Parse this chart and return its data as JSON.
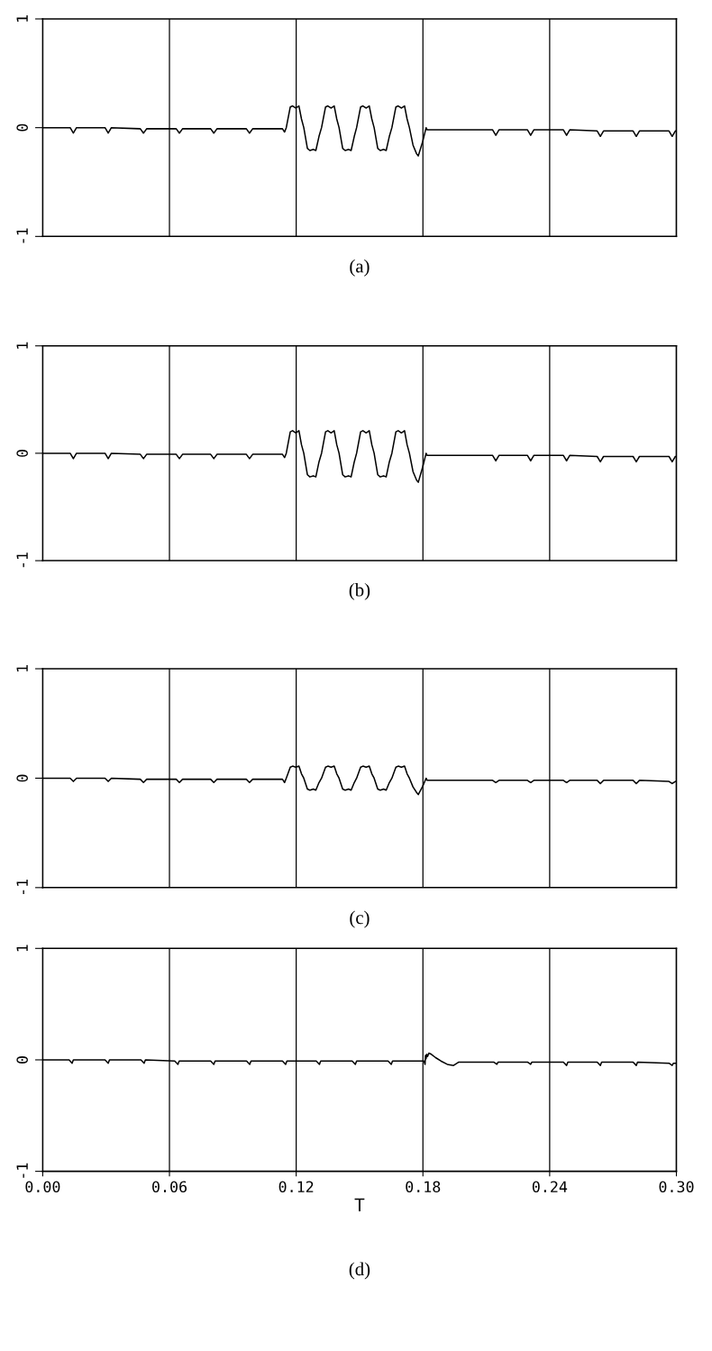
{
  "chart_data": [
    {
      "type": "line",
      "title": "(a)",
      "xlim": [
        0,
        0.3
      ],
      "ylim": [
        -1,
        1
      ],
      "yticks": [
        -1,
        0,
        1
      ],
      "grid": "x",
      "tick_labels": "y",
      "marker": "none",
      "line_style": "solid",
      "xticks": [
        0,
        0.06,
        0.12,
        0.18,
        0.24,
        0.3
      ],
      "series": [
        {
          "color": "#000000",
          "x": [
            0,
            0.013,
            0.0145,
            0.016,
            0.0295,
            0.031,
            0.0325,
            0.0462,
            0.0477,
            0.0492,
            0.0632,
            0.0647,
            0.0662,
            0.0795,
            0.081,
            0.0825,
            0.0964,
            0.0979,
            0.0994,
            0.1135,
            0.1145,
            0.1153,
            0.1172,
            0.1183,
            0.1198,
            0.1213,
            0.1225,
            0.1236,
            0.1253,
            0.1265,
            0.1281,
            0.1293,
            0.1308,
            0.132,
            0.1339,
            0.135,
            0.1365,
            0.138,
            0.1392,
            0.1403,
            0.142,
            0.1432,
            0.1448,
            0.146,
            0.1475,
            0.1486,
            0.1505,
            0.1516,
            0.1531,
            0.1546,
            0.1558,
            0.1569,
            0.1586,
            0.1598,
            0.1614,
            0.1626,
            0.1641,
            0.1653,
            0.1672,
            0.1683,
            0.1698,
            0.1713,
            0.1725,
            0.1736,
            0.1753,
            0.177,
            0.1778,
            0.18,
            0.1815,
            0.182,
            0.213,
            0.2145,
            0.216,
            0.2295,
            0.231,
            0.2325,
            0.2465,
            0.248,
            0.2495,
            0.2625,
            0.264,
            0.2655,
            0.2795,
            0.281,
            0.2825,
            0.2965,
            0.298,
            0.2995,
            0.3
          ],
          "values": [
            0,
            0,
            -0.05,
            0,
            0,
            -0.05,
            0,
            -0.01,
            -0.05,
            -0.01,
            -0.01,
            -0.05,
            -0.01,
            -0.01,
            -0.05,
            -0.01,
            -0.01,
            -0.05,
            -0.01,
            -0.01,
            -0.04,
            0,
            0.19,
            0.2,
            0.18,
            0.2,
            0.08,
            0,
            -0.19,
            -0.21,
            -0.2,
            -0.21,
            -0.08,
            0,
            0.19,
            0.2,
            0.18,
            0.2,
            0.08,
            0,
            -0.19,
            -0.21,
            -0.2,
            -0.21,
            -0.08,
            0,
            0.19,
            0.2,
            0.18,
            0.2,
            0.08,
            0,
            -0.19,
            -0.21,
            -0.2,
            -0.21,
            -0.08,
            0,
            0.19,
            0.2,
            0.18,
            0.2,
            0.08,
            0,
            -0.16,
            -0.24,
            -0.26,
            -0.12,
            0,
            -0.02,
            -0.02,
            -0.07,
            -0.02,
            -0.02,
            -0.07,
            -0.02,
            -0.02,
            -0.07,
            -0.02,
            -0.03,
            -0.08,
            -0.03,
            -0.03,
            -0.08,
            -0.03,
            -0.03,
            -0.08,
            -0.03,
            -0.03
          ]
        }
      ]
    },
    {
      "type": "line",
      "title": "(b)",
      "xlim": [
        0,
        0.3
      ],
      "ylim": [
        -1,
        1
      ],
      "yticks": [
        -1,
        0,
        1
      ],
      "grid": "x",
      "tick_labels": "y",
      "marker": "none",
      "line_style": "solid",
      "xticks": [
        0,
        0.06,
        0.12,
        0.18,
        0.24,
        0.3
      ],
      "series": [
        {
          "color": "#000000",
          "x": [
            0,
            0.013,
            0.0145,
            0.016,
            0.0295,
            0.031,
            0.0325,
            0.0462,
            0.0477,
            0.0492,
            0.0632,
            0.0647,
            0.0662,
            0.0795,
            0.081,
            0.0825,
            0.0964,
            0.0979,
            0.0994,
            0.1135,
            0.1145,
            0.1153,
            0.1172,
            0.1183,
            0.1198,
            0.1213,
            0.1225,
            0.1236,
            0.1253,
            0.1265,
            0.1281,
            0.1293,
            0.1308,
            0.132,
            0.1339,
            0.135,
            0.1365,
            0.138,
            0.1392,
            0.1403,
            0.142,
            0.1432,
            0.1448,
            0.146,
            0.1475,
            0.1486,
            0.1505,
            0.1516,
            0.1531,
            0.1546,
            0.1558,
            0.1569,
            0.1586,
            0.1598,
            0.1614,
            0.1626,
            0.1641,
            0.1653,
            0.1672,
            0.1683,
            0.1698,
            0.1713,
            0.1725,
            0.1736,
            0.1753,
            0.177,
            0.1778,
            0.18,
            0.1815,
            0.182,
            0.213,
            0.2145,
            0.216,
            0.2295,
            0.231,
            0.2325,
            0.2465,
            0.248,
            0.2495,
            0.2625,
            0.264,
            0.2655,
            0.2795,
            0.281,
            0.2825,
            0.2965,
            0.298,
            0.2995,
            0.3
          ],
          "values": [
            0,
            0,
            -0.05,
            0,
            0,
            -0.05,
            0,
            -0.01,
            -0.05,
            -0.01,
            -0.01,
            -0.05,
            -0.01,
            -0.01,
            -0.05,
            -0.01,
            -0.01,
            -0.05,
            -0.01,
            -0.01,
            -0.04,
            0,
            0.2,
            0.21,
            0.19,
            0.21,
            0.08,
            0,
            -0.2,
            -0.22,
            -0.21,
            -0.22,
            -0.08,
            0,
            0.2,
            0.21,
            0.19,
            0.21,
            0.08,
            0,
            -0.2,
            -0.22,
            -0.21,
            -0.22,
            -0.08,
            0,
            0.2,
            0.21,
            0.19,
            0.21,
            0.08,
            0,
            -0.2,
            -0.22,
            -0.21,
            -0.22,
            -0.08,
            0,
            0.2,
            0.21,
            0.19,
            0.21,
            0.08,
            0,
            -0.17,
            -0.25,
            -0.27,
            -0.12,
            0,
            -0.02,
            -0.02,
            -0.07,
            -0.02,
            -0.02,
            -0.07,
            -0.02,
            -0.02,
            -0.07,
            -0.02,
            -0.03,
            -0.08,
            -0.03,
            -0.03,
            -0.08,
            -0.03,
            -0.03,
            -0.08,
            -0.03,
            -0.03
          ]
        }
      ]
    },
    {
      "type": "line",
      "title": "(c)",
      "xlim": [
        0,
        0.3
      ],
      "ylim": [
        -1,
        1
      ],
      "yticks": [
        -1,
        0,
        1
      ],
      "grid": "x",
      "tick_labels": "y",
      "marker": "none",
      "line_style": "solid",
      "xticks": [
        0,
        0.06,
        0.12,
        0.18,
        0.24,
        0.3
      ],
      "series": [
        {
          "color": "#000000",
          "x": [
            0,
            0.013,
            0.0145,
            0.016,
            0.0295,
            0.031,
            0.0325,
            0.0462,
            0.0477,
            0.0492,
            0.0632,
            0.0647,
            0.0662,
            0.0795,
            0.081,
            0.0825,
            0.0964,
            0.0979,
            0.0994,
            0.1135,
            0.1145,
            0.1153,
            0.1172,
            0.1183,
            0.1198,
            0.1213,
            0.1225,
            0.1236,
            0.1253,
            0.1265,
            0.1281,
            0.1293,
            0.1308,
            0.132,
            0.1339,
            0.135,
            0.1365,
            0.138,
            0.1392,
            0.1403,
            0.142,
            0.1432,
            0.1448,
            0.146,
            0.1475,
            0.1486,
            0.1505,
            0.1516,
            0.1531,
            0.1546,
            0.1558,
            0.1569,
            0.1586,
            0.1598,
            0.1614,
            0.1626,
            0.1641,
            0.1653,
            0.1672,
            0.1683,
            0.1698,
            0.1713,
            0.1725,
            0.1736,
            0.1753,
            0.177,
            0.1778,
            0.18,
            0.1815,
            0.182,
            0.213,
            0.2145,
            0.216,
            0.2295,
            0.231,
            0.2325,
            0.2465,
            0.248,
            0.2495,
            0.2625,
            0.264,
            0.2655,
            0.2795,
            0.281,
            0.2825,
            0.2965,
            0.298,
            0.2995,
            0.3
          ],
          "values": [
            0,
            0,
            -0.03,
            0,
            0,
            -0.03,
            0,
            -0.01,
            -0.04,
            -0.01,
            -0.01,
            -0.04,
            -0.01,
            -0.01,
            -0.04,
            -0.01,
            -0.01,
            -0.04,
            -0.01,
            -0.01,
            -0.04,
            0,
            0.1,
            0.11,
            0.1,
            0.11,
            0.04,
            0,
            -0.1,
            -0.11,
            -0.1,
            -0.11,
            -0.04,
            0,
            0.1,
            0.11,
            0.1,
            0.11,
            0.04,
            0,
            -0.1,
            -0.11,
            -0.1,
            -0.11,
            -0.04,
            0,
            0.1,
            0.11,
            0.1,
            0.11,
            0.04,
            0,
            -0.1,
            -0.11,
            -0.1,
            -0.11,
            -0.04,
            0,
            0.1,
            0.11,
            0.1,
            0.11,
            0.04,
            0,
            -0.08,
            -0.13,
            -0.15,
            -0.07,
            0,
            -0.02,
            -0.02,
            -0.04,
            -0.02,
            -0.02,
            -0.04,
            -0.02,
            -0.02,
            -0.04,
            -0.02,
            -0.02,
            -0.05,
            -0.02,
            -0.02,
            -0.05,
            -0.02,
            -0.03,
            -0.05,
            -0.03,
            -0.03
          ]
        }
      ]
    },
    {
      "type": "line",
      "title": "(d)",
      "xlabel": "T",
      "xlim": [
        0,
        0.3
      ],
      "ylim": [
        -1,
        1
      ],
      "yticks": [
        -1,
        0,
        1
      ],
      "grid": "x",
      "marker": "none",
      "line_style": "solid",
      "xticks": [
        {
          "value": 0,
          "label": "0.00"
        },
        {
          "value": 0.06,
          "label": "0.06"
        },
        {
          "value": 0.12,
          "label": "0.12"
        },
        {
          "value": 0.18,
          "label": "0.18"
        },
        {
          "value": 0.24,
          "label": "0.24"
        },
        {
          "value": 0.3,
          "label": "0.30"
        }
      ],
      "series": [
        {
          "color": "#000000",
          "x": [
            0,
            0.0125,
            0.0139,
            0.0145,
            0.0295,
            0.031,
            0.0316,
            0.0465,
            0.048,
            0.0486,
            0.0625,
            0.064,
            0.0646,
            0.0795,
            0.081,
            0.0816,
            0.0965,
            0.098,
            0.0986,
            0.1135,
            0.115,
            0.1156,
            0.1295,
            0.131,
            0.1316,
            0.1465,
            0.148,
            0.1486,
            0.1635,
            0.165,
            0.1656,
            0.1805,
            0.181,
            0.1812,
            0.1815,
            0.1818,
            0.1822,
            0.1828,
            0.184,
            0.186,
            0.1885,
            0.1915,
            0.1945,
            0.197,
            0.1985,
            0.2135,
            0.215,
            0.2156,
            0.2295,
            0.231,
            0.2316,
            0.2465,
            0.248,
            0.2486,
            0.2625,
            0.264,
            0.2646,
            0.2795,
            0.281,
            0.2816,
            0.2965,
            0.298,
            0.2986,
            0.3
          ],
          "values": [
            0,
            0,
            -0.03,
            0,
            0,
            -0.03,
            0,
            0,
            -0.03,
            0,
            -0.01,
            -0.04,
            -0.01,
            -0.01,
            -0.04,
            -0.01,
            -0.01,
            -0.04,
            -0.01,
            -0.01,
            -0.04,
            -0.01,
            -0.01,
            -0.04,
            -0.01,
            -0.01,
            -0.04,
            -0.01,
            -0.01,
            -0.04,
            -0.01,
            -0.01,
            -0.04,
            0.04,
            0.01,
            0.05,
            0.03,
            0.06,
            0.05,
            0.02,
            -0.01,
            -0.04,
            -0.05,
            -0.02,
            -0.02,
            -0.02,
            -0.04,
            -0.02,
            -0.02,
            -0.04,
            -0.02,
            -0.02,
            -0.05,
            -0.02,
            -0.02,
            -0.05,
            -0.02,
            -0.02,
            -0.05,
            -0.02,
            -0.03,
            -0.05,
            -0.03,
            -0.03
          ]
        }
      ]
    }
  ]
}
